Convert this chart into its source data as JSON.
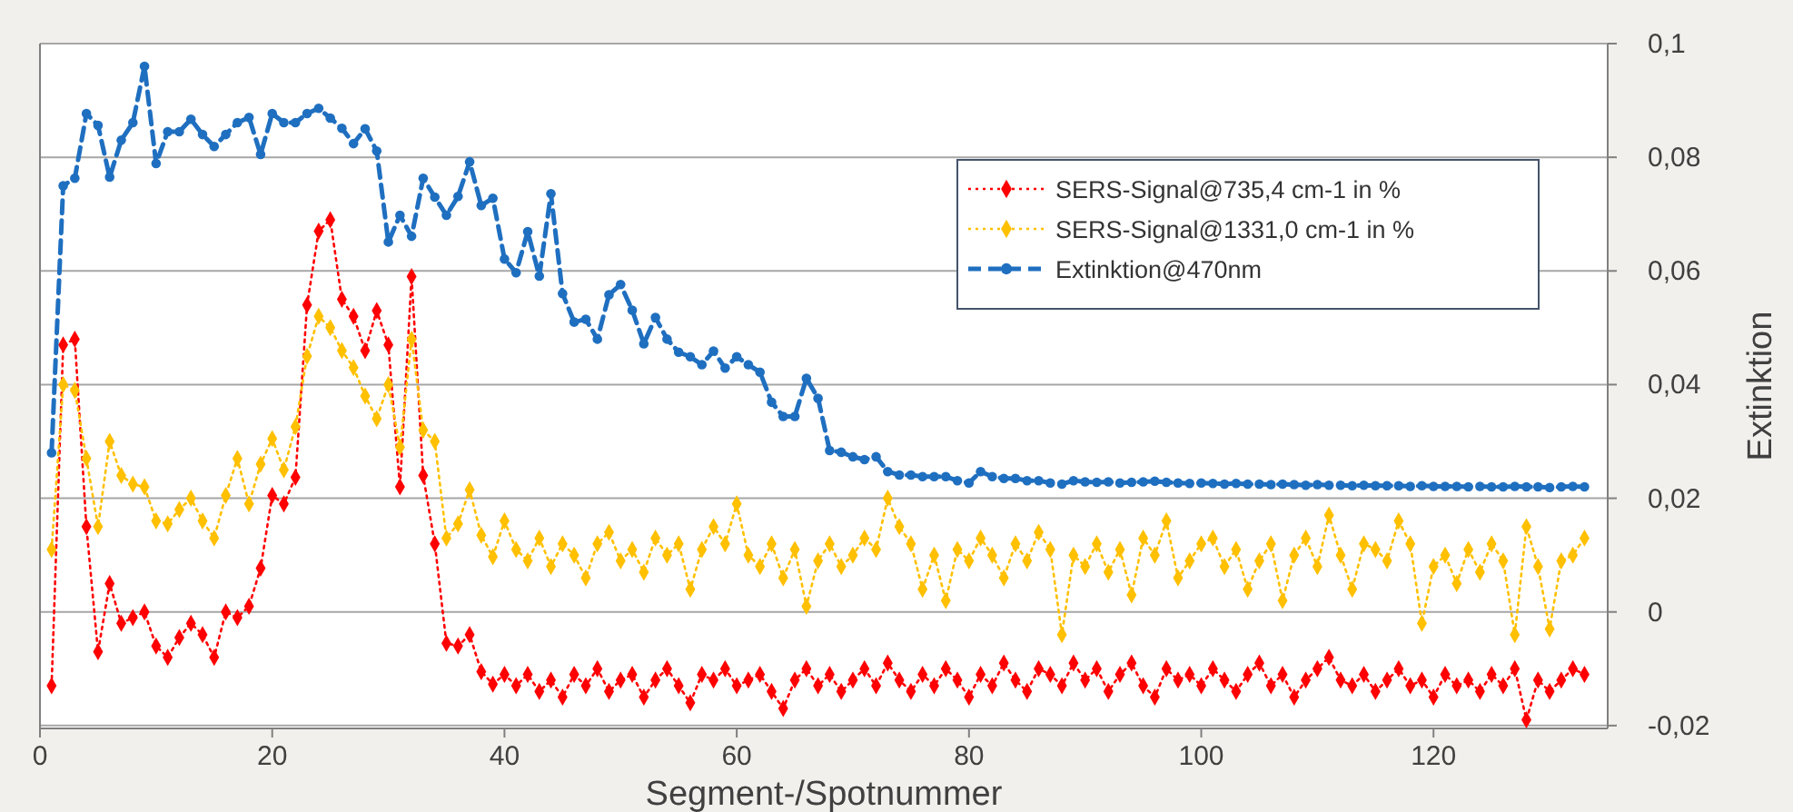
{
  "chart_data": {
    "type": "line",
    "xlabel": "Segment-/Spotnummer",
    "y2label": "Extinktion",
    "x": [
      1,
      2,
      3,
      4,
      5,
      6,
      7,
      8,
      9,
      10,
      11,
      12,
      13,
      14,
      15,
      16,
      17,
      18,
      19,
      20,
      21,
      22,
      23,
      24,
      25,
      26,
      27,
      28,
      29,
      30,
      31,
      32,
      33,
      34,
      35,
      36,
      37,
      38,
      39,
      40,
      41,
      42,
      43,
      44,
      45,
      46,
      47,
      48,
      49,
      50,
      51,
      52,
      53,
      54,
      55,
      56,
      57,
      58,
      59,
      60,
      61,
      62,
      63,
      64,
      65,
      66,
      67,
      68,
      69,
      70,
      71,
      72,
      73,
      74,
      75,
      76,
      77,
      78,
      79,
      80,
      81,
      82,
      83,
      84,
      85,
      86,
      87,
      88,
      89,
      90,
      91,
      92,
      93,
      94,
      95,
      96,
      97,
      98,
      99,
      100,
      101,
      102,
      103,
      104,
      105,
      106,
      107,
      108,
      109,
      110,
      111,
      112,
      113,
      114,
      115,
      116,
      117,
      118,
      119,
      120,
      121,
      122,
      123,
      124,
      125,
      126,
      127,
      128,
      129,
      130,
      131,
      132,
      133
    ],
    "xlim": [
      0,
      135
    ],
    "xticks": [
      0,
      20,
      40,
      60,
      80,
      100,
      120
    ],
    "y2lim": [
      -0.0205,
      0.1
    ],
    "y2ticks": [
      {
        "value": 0.1,
        "label": "0,1"
      },
      {
        "value": 0.08,
        "label": "0,08"
      },
      {
        "value": 0.06,
        "label": "0,06"
      },
      {
        "value": 0.04,
        "label": "0,04"
      },
      {
        "value": 0.02,
        "label": "0,02"
      },
      0,
      {
        "value": -0.02,
        "label": "-0,02"
      }
    ],
    "grid": true,
    "legend": "top right",
    "series": [
      {
        "name": "SERS-Signal@735,4 cm-1 in %",
        "color": "#ff0000",
        "axis": "y2",
        "line_style": "dotted",
        "marker": "diamond",
        "values": [
          -0.013,
          0.047,
          0.048,
          0.015,
          -0.007,
          0.005,
          -0.002,
          -0.001,
          0,
          -0.006,
          -0.008,
          -0.0045,
          -0.002,
          -0.004,
          -0.008,
          0,
          -0.001,
          0.001,
          0.0077,
          0.0205,
          0.019,
          0.0237,
          0.054,
          0.067,
          0.069,
          0.055,
          0.052,
          0.046,
          0.053,
          0.047,
          0.022,
          0.059,
          0.024,
          0.012,
          -0.0055,
          -0.006,
          -0.004,
          -0.0105,
          -0.0127,
          -0.011,
          -0.013,
          -0.011,
          -0.014,
          -0.012,
          -0.015,
          -0.011,
          -0.013,
          -0.01,
          -0.014,
          -0.012,
          -0.011,
          -0.015,
          -0.012,
          -0.01,
          -0.013,
          -0.016,
          -0.011,
          -0.012,
          -0.01,
          -0.013,
          -0.012,
          -0.011,
          -0.014,
          -0.017,
          -0.012,
          -0.01,
          -0.013,
          -0.011,
          -0.014,
          -0.012,
          -0.01,
          -0.013,
          -0.009,
          -0.012,
          -0.014,
          -0.011,
          -0.013,
          -0.01,
          -0.012,
          -0.015,
          -0.011,
          -0.013,
          -0.009,
          -0.012,
          -0.014,
          -0.01,
          -0.011,
          -0.013,
          -0.009,
          -0.012,
          -0.01,
          -0.014,
          -0.011,
          -0.009,
          -0.013,
          -0.015,
          -0.01,
          -0.012,
          -0.011,
          -0.013,
          -0.01,
          -0.012,
          -0.014,
          -0.011,
          -0.009,
          -0.013,
          -0.011,
          -0.015,
          -0.012,
          -0.01,
          -0.008,
          -0.012,
          -0.013,
          -0.011,
          -0.014,
          -0.012,
          -0.01,
          -0.013,
          -0.012,
          -0.015,
          -0.011,
          -0.013,
          -0.012,
          -0.014,
          -0.011,
          -0.013,
          -0.01,
          -0.019,
          -0.012,
          -0.014,
          -0.012,
          -0.01,
          -0.011
        ]
      },
      {
        "name": "SERS-Signal@1331,0 cm-1 in %",
        "color": "#ffc000",
        "axis": "y2",
        "line_style": "dotted",
        "marker": "diamond",
        "values": [
          0.011,
          0.04,
          0.039,
          0.027,
          0.015,
          0.03,
          0.024,
          0.0225,
          0.022,
          0.016,
          0.0155,
          0.018,
          0.02,
          0.016,
          0.013,
          0.0205,
          0.027,
          0.019,
          0.026,
          0.0305,
          0.025,
          0.0326,
          0.045,
          0.052,
          0.05,
          0.046,
          0.043,
          0.038,
          0.034,
          0.04,
          0.029,
          0.048,
          0.032,
          0.03,
          0.013,
          0.0155,
          0.0215,
          0.0135,
          0.0097,
          0.016,
          0.011,
          0.009,
          0.013,
          0.008,
          0.012,
          0.01,
          0.006,
          0.012,
          0.014,
          0.009,
          0.011,
          0.007,
          0.013,
          0.01,
          0.012,
          0.004,
          0.011,
          0.015,
          0.012,
          0.019,
          0.01,
          0.008,
          0.012,
          0.006,
          0.011,
          0.001,
          0.009,
          0.012,
          0.008,
          0.01,
          0.013,
          0.011,
          0.02,
          0.015,
          0.012,
          0.004,
          0.01,
          0.002,
          0.011,
          0.009,
          0.013,
          0.01,
          0.006,
          0.012,
          0.009,
          0.014,
          0.011,
          -0.004,
          0.01,
          0.008,
          0.012,
          0.007,
          0.011,
          0.003,
          0.013,
          0.01,
          0.016,
          0.006,
          0.009,
          0.012,
          0.013,
          0.008,
          0.011,
          0.004,
          0.009,
          0.012,
          0.002,
          0.01,
          0.013,
          0.008,
          0.017,
          0.01,
          0.004,
          0.012,
          0.011,
          0.009,
          0.016,
          0.012,
          -0.002,
          0.008,
          0.01,
          0.005,
          0.011,
          0.007,
          0.012,
          0.009,
          -0.004,
          0.015,
          0.008,
          -0.003,
          0.009,
          0.01,
          0.013
        ]
      },
      {
        "name": "Extinktion@470nm",
        "color": "#1f6fc0",
        "axis": "y2",
        "line_style": "dashed",
        "marker": "circle",
        "values": [
          0.028,
          0.075,
          0.0763,
          0.0877,
          0.0856,
          0.0765,
          0.083,
          0.0861,
          0.096,
          0.0789,
          0.0845,
          0.0845,
          0.0867,
          0.084,
          0.0819,
          0.084,
          0.0861,
          0.087,
          0.0805,
          0.0877,
          0.0861,
          0.0861,
          0.0877,
          0.0886,
          0.0869,
          0.0851,
          0.0824,
          0.085,
          0.0811,
          0.0651,
          0.0698,
          0.0661,
          0.0763,
          0.073,
          0.0698,
          0.0731,
          0.0792,
          0.0715,
          0.0728,
          0.0621,
          0.0597,
          0.0669,
          0.0591,
          0.0736,
          0.056,
          0.051,
          0.0515,
          0.048,
          0.0558,
          0.0576,
          0.0531,
          0.0472,
          0.0518,
          0.048,
          0.0457,
          0.0449,
          0.0435,
          0.0459,
          0.0429,
          0.0449,
          0.0435,
          0.0422,
          0.0369,
          0.0344,
          0.0344,
          0.0411,
          0.0376,
          0.0284,
          0.0281,
          0.0273,
          0.0268,
          0.0273,
          0.0247,
          0.0241,
          0.0241,
          0.0238,
          0.0238,
          0.0238,
          0.0231,
          0.0227,
          0.0247,
          0.0238,
          0.0235,
          0.0235,
          0.0231,
          0.0231,
          0.0227,
          0.0225,
          0.0231,
          0.0229,
          0.0228,
          0.0229,
          0.0227,
          0.0228,
          0.0229,
          0.023,
          0.0228,
          0.0227,
          0.0226,
          0.0227,
          0.0226,
          0.0225,
          0.0226,
          0.0225,
          0.0225,
          0.0224,
          0.0225,
          0.0224,
          0.0223,
          0.0224,
          0.0223,
          0.0223,
          0.0222,
          0.0223,
          0.0222,
          0.0222,
          0.0222,
          0.0221,
          0.0222,
          0.0221,
          0.0221,
          0.0221,
          0.022,
          0.0221,
          0.022,
          0.022,
          0.0221,
          0.022,
          0.022,
          0.0219,
          0.022,
          0.0221,
          0.022
        ]
      }
    ]
  }
}
